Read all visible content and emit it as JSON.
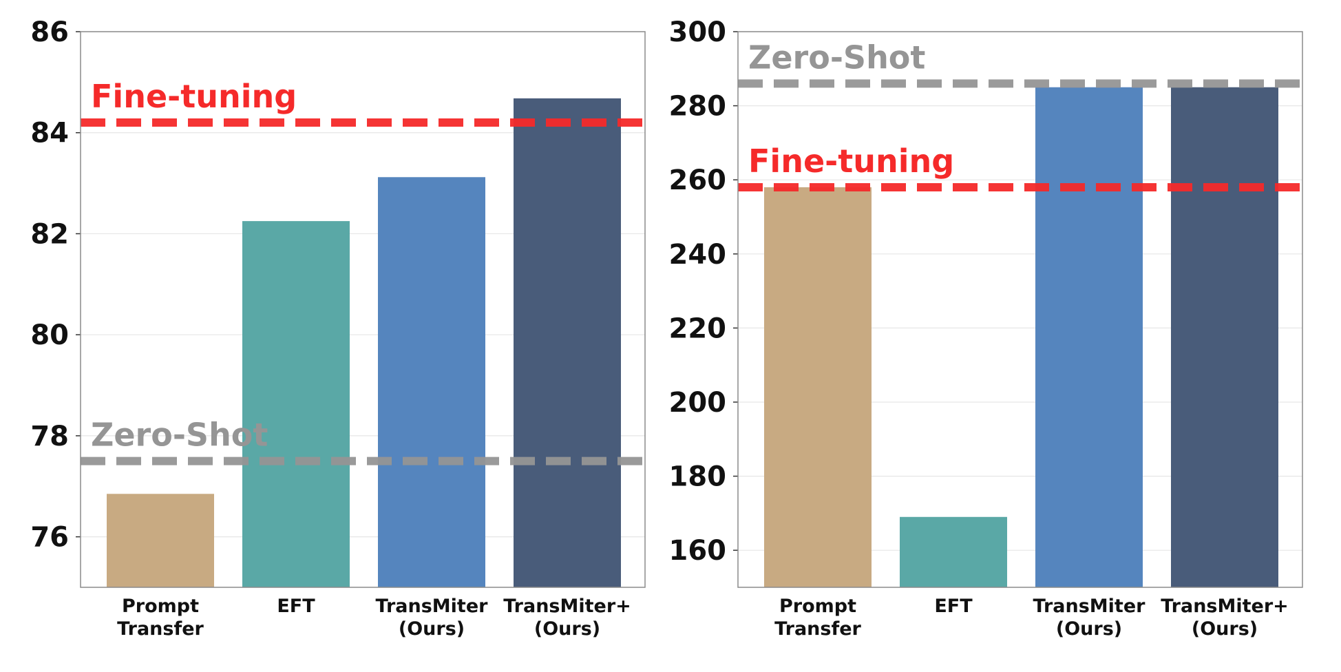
{
  "chart_data": [
    {
      "type": "bar",
      "categories": [
        [
          "Prompt",
          "Transfer"
        ],
        [
          "EFT"
        ],
        [
          "TransMiter",
          "(Ours)"
        ],
        [
          "TransMiter+",
          "(Ours)"
        ]
      ],
      "values": [
        76.85,
        82.25,
        83.12,
        84.68
      ],
      "bar_colors": [
        "#c8aa82",
        "#5aa8a6",
        "#5585be",
        "#495c7a"
      ],
      "ylim": [
        75,
        86
      ],
      "yticks": [
        76,
        78,
        80,
        82,
        84,
        86
      ],
      "grid": true,
      "reference_lines": [
        {
          "label": "Fine-tuning",
          "value": 84.2,
          "color": "#f52a2a"
        },
        {
          "label": "Zero-Shot",
          "value": 77.5,
          "color": "#959595"
        }
      ]
    },
    {
      "type": "bar",
      "categories": [
        [
          "Prompt",
          "Transfer"
        ],
        [
          "EFT"
        ],
        [
          "TransMiter",
          "(Ours)"
        ],
        [
          "TransMiter+",
          "(Ours)"
        ]
      ],
      "values": [
        258,
        169,
        285,
        285
      ],
      "bar_colors": [
        "#c8aa82",
        "#5aa8a6",
        "#5585be",
        "#495c7a"
      ],
      "ylim": [
        150,
        300
      ],
      "yticks": [
        160,
        180,
        200,
        220,
        240,
        260,
        280,
        300
      ],
      "grid": true,
      "reference_lines": [
        {
          "label": "Zero-Shot",
          "value": 286,
          "color": "#959595"
        },
        {
          "label": "Fine-tuning",
          "value": 258,
          "color": "#f52a2a"
        }
      ]
    }
  ]
}
